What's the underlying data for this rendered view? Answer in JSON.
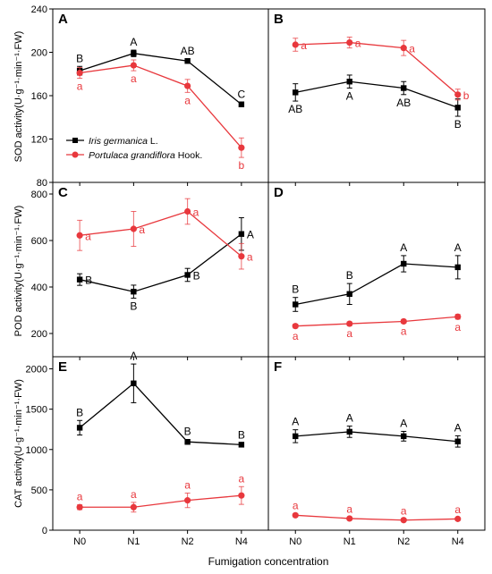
{
  "figure": {
    "xlabel": "Fumigation concentration"
  },
  "colors": {
    "series1": "#000000",
    "series2": "#e8383d"
  },
  "legend": {
    "entries": [
      {
        "italic": "Iris germanica",
        "rest": " L."
      },
      {
        "italic": "Portulaca grandiflora",
        "rest": " Hook."
      }
    ]
  },
  "ylabels": {
    "sod": "SOD activity(U·g⁻¹·min⁻¹·FW)",
    "pod": "POD activity(U·g⁻¹·min⁻¹·FW)",
    "cat": "CAT activity(U·g⁻¹·min⁻¹·FW)"
  },
  "chart_data": [
    {
      "panel": "A",
      "type": "line",
      "categories": [
        "N0",
        "N1",
        "N2",
        "N4"
      ],
      "ylim": [
        80,
        240
      ],
      "yticks": [
        80,
        120,
        160,
        200,
        240
      ],
      "series": [
        {
          "name": "Iris germanica L.",
          "color": "#000000",
          "marker": "square",
          "values": [
            183,
            199,
            192,
            152
          ],
          "errors": [
            4,
            3,
            2,
            2
          ],
          "sig": [
            "B",
            "A",
            "AB",
            "C"
          ],
          "sigpos": [
            "above",
            "above",
            "above",
            "above"
          ]
        },
        {
          "name": "Portulaca grandiflora Hook.",
          "color": "#e8383d",
          "marker": "circle",
          "values": [
            181,
            188,
            169,
            112
          ],
          "errors": [
            5,
            5,
            6,
            9
          ],
          "sig": [
            "a",
            "a",
            "a",
            "b"
          ],
          "sigpos": [
            "below",
            "below",
            "below",
            "below"
          ]
        }
      ]
    },
    {
      "panel": "B",
      "type": "line",
      "categories": [
        "N0",
        "N1",
        "N2",
        "N4"
      ],
      "ylim": [
        80,
        240
      ],
      "yticks": [
        80,
        120,
        160,
        200,
        240
      ],
      "series": [
        {
          "name": "Iris germanica L.",
          "color": "#000000",
          "marker": "square",
          "values": [
            163,
            173,
            167,
            149
          ],
          "errors": [
            8,
            6,
            6,
            8
          ],
          "sig": [
            "AB",
            "A",
            "AB",
            "B"
          ],
          "sigpos": [
            "below",
            "below",
            "below",
            "below"
          ]
        },
        {
          "name": "Portulaca grandiflora Hook.",
          "color": "#e8383d",
          "marker": "circle",
          "values": [
            207,
            209,
            204,
            161
          ],
          "errors": [
            6,
            5,
            7,
            5
          ],
          "sig": [
            "a",
            "a",
            "a",
            "b"
          ],
          "sigpos": [
            "right",
            "right",
            "right",
            "right"
          ]
        }
      ]
    },
    {
      "panel": "C",
      "type": "line",
      "categories": [
        "N0",
        "N1",
        "N2",
        "N4"
      ],
      "ylim": [
        100,
        850
      ],
      "yticks": [
        200,
        400,
        600,
        800
      ],
      "series": [
        {
          "name": "Iris germanica L.",
          "color": "#000000",
          "marker": "square",
          "values": [
            432,
            380,
            452,
            628
          ],
          "errors": [
            25,
            28,
            28,
            70
          ],
          "sig": [
            "B",
            "B",
            "B",
            "A"
          ],
          "sigpos": [
            "right",
            "below",
            "right",
            "right"
          ]
        },
        {
          "name": "Portulaca grandiflora Hook.",
          "color": "#e8383d",
          "marker": "circle",
          "values": [
            622,
            650,
            725,
            532
          ],
          "errors": [
            65,
            75,
            55,
            55
          ],
          "sig": [
            "a",
            "a",
            "a",
            "a"
          ],
          "sigpos": [
            "right",
            "right",
            "right",
            "right"
          ]
        }
      ]
    },
    {
      "panel": "D",
      "type": "line",
      "categories": [
        "N0",
        "N1",
        "N2",
        "N4"
      ],
      "ylim": [
        100,
        850
      ],
      "yticks": [
        200,
        400,
        600,
        800
      ],
      "series": [
        {
          "name": "Iris germanica L.",
          "color": "#000000",
          "marker": "square",
          "values": [
            325,
            370,
            500,
            485
          ],
          "errors": [
            30,
            45,
            35,
            50
          ],
          "sig": [
            "B",
            "B",
            "A",
            "A"
          ],
          "sigpos": [
            "above",
            "above",
            "above",
            "above"
          ]
        },
        {
          "name": "Portulaca grandiflora Hook.",
          "color": "#e8383d",
          "marker": "circle",
          "values": [
            232,
            242,
            252,
            272
          ],
          "errors": [
            8,
            8,
            8,
            10
          ],
          "sig": [
            "a",
            "a",
            "a",
            "a"
          ],
          "sigpos": [
            "below",
            "below",
            "below",
            "below"
          ]
        }
      ]
    },
    {
      "panel": "E",
      "type": "line",
      "categories": [
        "N0",
        "N1",
        "N2",
        "N4"
      ],
      "ylim": [
        0,
        2150
      ],
      "yticks": [
        0,
        500,
        1000,
        1500,
        2000
      ],
      "series": [
        {
          "name": "Iris germanica L.",
          "color": "#000000",
          "marker": "square",
          "values": [
            1270,
            1820,
            1095,
            1060
          ],
          "errors": [
            90,
            240,
            30,
            20
          ],
          "sig": [
            "B",
            "A",
            "B",
            "B"
          ],
          "sigpos": [
            "above",
            "above",
            "above",
            "above"
          ]
        },
        {
          "name": "Portulaca grandiflora Hook.",
          "color": "#e8383d",
          "marker": "circle",
          "values": [
            285,
            285,
            370,
            430
          ],
          "errors": [
            30,
            60,
            90,
            110
          ],
          "sig": [
            "a",
            "a",
            "a",
            "a"
          ],
          "sigpos": [
            "above",
            "above",
            "above",
            "above"
          ]
        }
      ]
    },
    {
      "panel": "F",
      "type": "line",
      "categories": [
        "N0",
        "N1",
        "N2",
        "N4"
      ],
      "ylim": [
        0,
        2150
      ],
      "yticks": [
        0,
        500,
        1000,
        1500,
        2000
      ],
      "series": [
        {
          "name": "Iris germanica L.",
          "color": "#000000",
          "marker": "square",
          "values": [
            1165,
            1220,
            1165,
            1100
          ],
          "errors": [
            80,
            70,
            60,
            70
          ],
          "sig": [
            "A",
            "A",
            "A",
            "A"
          ],
          "sigpos": [
            "above",
            "above",
            "above",
            "above"
          ]
        },
        {
          "name": "Portulaca grandiflora Hook.",
          "color": "#e8383d",
          "marker": "circle",
          "values": [
            185,
            145,
            125,
            140
          ],
          "errors": [
            20,
            15,
            15,
            15
          ],
          "sig": [
            "a",
            "a",
            "a",
            "a"
          ],
          "sigpos": [
            "above",
            "above",
            "above",
            "above"
          ]
        }
      ]
    }
  ]
}
